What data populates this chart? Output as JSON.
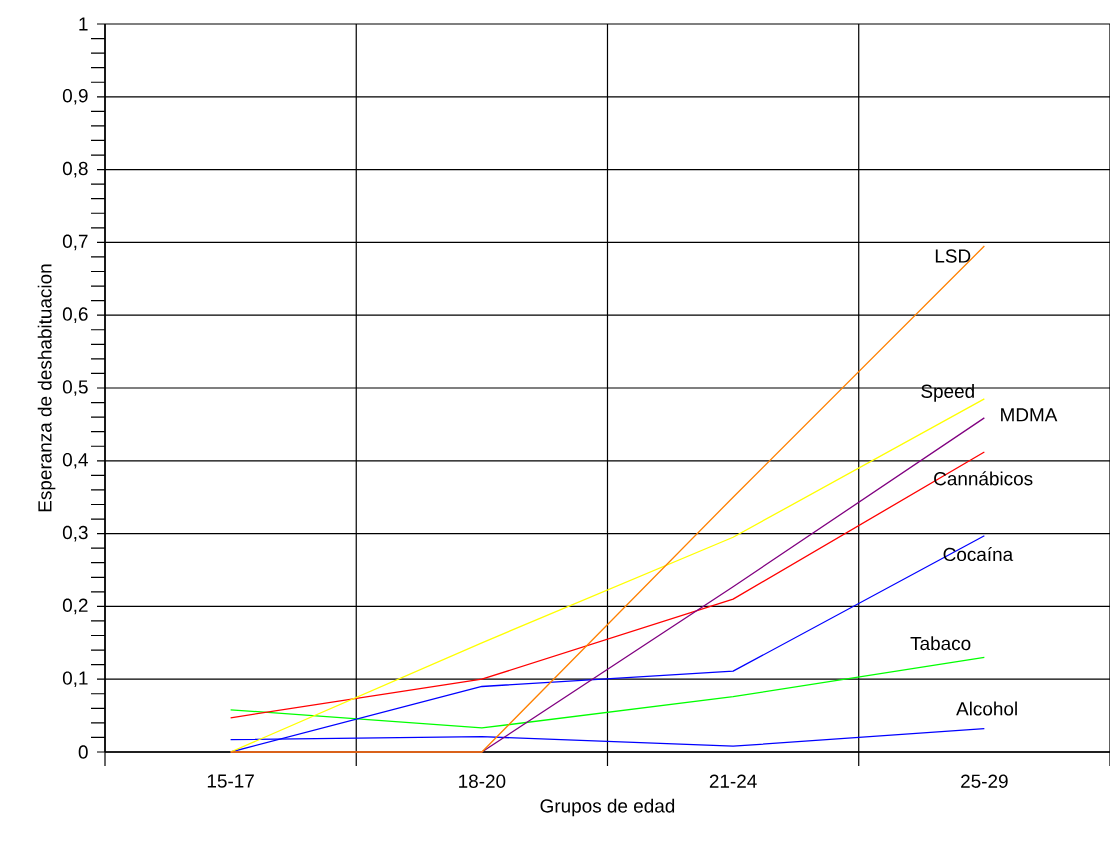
{
  "chart_data": {
    "type": "line",
    "xlabel": "Grupos de edad",
    "ylabel": "Esperanza de deshabituacion",
    "categories": [
      "15-17",
      "18-20",
      "21-24",
      "25-29"
    ],
    "ylim": [
      0,
      1
    ],
    "yticks": [
      0,
      {
        "value": 0.1,
        "label": "0,1"
      },
      {
        "value": 0.2,
        "label": "0,2"
      },
      {
        "value": 0.3,
        "label": "0,3"
      },
      {
        "value": 0.4,
        "label": "0,4"
      },
      {
        "value": 0.5,
        "label": "0,5"
      },
      {
        "value": 0.6,
        "label": "0,6"
      },
      {
        "value": 0.7,
        "label": "0,7"
      },
      {
        "value": 0.8,
        "label": "0,8"
      },
      {
        "value": 0.9,
        "label": "0,9"
      },
      1
    ],
    "grid": true,
    "series": [
      {
        "name": "Alcohol",
        "color": "#0000ff",
        "values": [
          0.017,
          0.021,
          0.008,
          0.032
        ]
      },
      {
        "name": "Tabaco",
        "color": "#00ff00",
        "values": [
          0.058,
          0.033,
          0.076,
          0.13
        ]
      },
      {
        "name": "Cocaína",
        "color": "#0000ff",
        "values": [
          0,
          0.09,
          0.111,
          0.297
        ]
      },
      {
        "name": "Cannábicos",
        "color": "#ff0000",
        "values": [
          0.047,
          0.1,
          0.21,
          0.412
        ]
      },
      {
        "name": "MDMA",
        "color": "#800080",
        "values": [
          0,
          0,
          0.227,
          0.459
        ]
      },
      {
        "name": "Speed",
        "color": "#ffff00",
        "values": [
          0,
          0.15,
          0.295,
          0.485
        ]
      },
      {
        "name": "LSD",
        "color": "#ff8000",
        "values": [
          0,
          0,
          0.35,
          0.695
        ]
      }
    ]
  }
}
